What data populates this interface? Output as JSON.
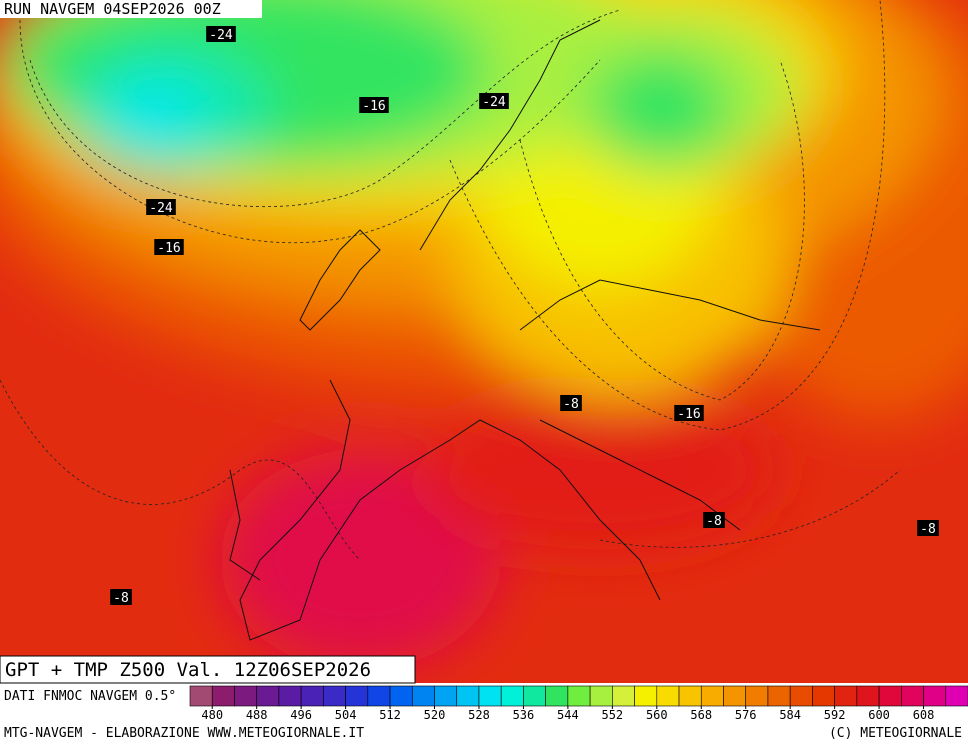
{
  "header": {
    "run": "RUN NAVGEM 04SEP2026 00Z"
  },
  "title": "GPT + TMP Z500 Val. 12Z06SEP2026",
  "source": "DATI FNMOC NAVGEM 0.5°",
  "contour_labels": [
    "-24",
    "-16",
    "-24",
    "-24",
    "-16",
    "-8",
    "-16",
    "-8",
    "-8",
    "-8"
  ],
  "colorbar": {
    "colors": [
      "#a34a72",
      "#8c1c6c",
      "#7c1a80",
      "#6a1a92",
      "#5a1ca4",
      "#4a22b6",
      "#3a2ac6",
      "#2434d6",
      "#1046e6",
      "#0064f0",
      "#0084f2",
      "#00a4f2",
      "#00c4f2",
      "#00e2f2",
      "#00f0d8",
      "#10e8a0",
      "#30e460",
      "#70ee40",
      "#a8f040",
      "#d4f03a",
      "#f4f000",
      "#f8dc00",
      "#f8c400",
      "#f8ac00",
      "#f49400",
      "#f07c00",
      "#ec6400",
      "#e84c00",
      "#e43800",
      "#e02410",
      "#e0141c",
      "#e0083a",
      "#e0045e",
      "#e00088",
      "#e000b4"
    ],
    "ticks": [
      480,
      488,
      496,
      504,
      512,
      520,
      528,
      536,
      544,
      552,
      560,
      568,
      576,
      584,
      592,
      600,
      608
    ]
  },
  "footer": {
    "left": "MTG-NAVGEM - ELABORAZIONE WWW.METEOGIORNALE.IT",
    "right": "(C) METEOGIORNALE"
  }
}
